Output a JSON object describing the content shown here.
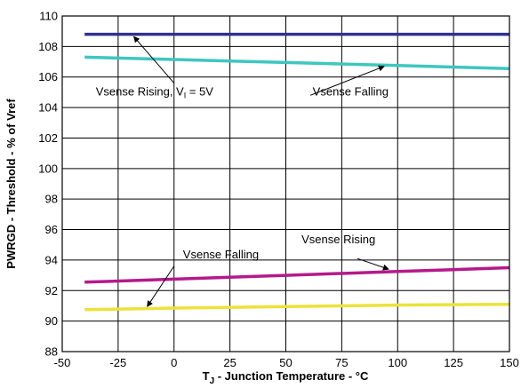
{
  "chart_data": {
    "type": "line",
    "xlabel": {
      "prefix": "T",
      "subscript": "J",
      "rest": " - Junction Temperature - °C"
    },
    "ylabel": "PWRGD - Threshold - % of Vref",
    "xlim": [
      -50,
      150
    ],
    "ylim": [
      88,
      110
    ],
    "xticks": [
      -50,
      -25,
      0,
      25,
      50,
      75,
      100,
      125,
      150
    ],
    "yticks": [
      88,
      90,
      92,
      94,
      96,
      98,
      100,
      102,
      104,
      106,
      108,
      110
    ],
    "grid": true,
    "series": [
      {
        "color": "#2e3192",
        "x": [
          -40,
          150
        ],
        "y": [
          108.8,
          108.8
        ]
      },
      {
        "color": "#3ec6c0",
        "x": [
          -40,
          0,
          50,
          100,
          150
        ],
        "y": [
          107.3,
          107.15,
          106.95,
          106.75,
          106.55
        ]
      },
      {
        "color": "#b5198b",
        "x": [
          -40,
          0,
          50,
          100,
          150
        ],
        "y": [
          92.55,
          92.75,
          93.0,
          93.25,
          93.5
        ]
      },
      {
        "color": "#ece23a",
        "x": [
          -40,
          0,
          50,
          100,
          150
        ],
        "y": [
          90.75,
          90.85,
          90.95,
          91.05,
          91.1
        ]
      }
    ],
    "annotations": [
      {
        "id": "rising-upper",
        "text_main": "Vsense Rising, V",
        "text_sub": "I",
        "text_tail": " = 5V",
        "text_xy": [
          -35,
          104.8
        ],
        "arrow_from": [
          0,
          105.6
        ],
        "arrow_to": [
          -18,
          108.65
        ]
      },
      {
        "id": "falling-upper",
        "text": "Vsense Falling",
        "text_xy": [
          62,
          104.8
        ],
        "arrow_from": [
          61,
          104.8
        ],
        "arrow_to": [
          94,
          106.7
        ]
      },
      {
        "id": "falling-lower",
        "text": "Vsense Falling",
        "text_xy": [
          4,
          94.1
        ],
        "arrow_from": [
          0,
          93.6
        ],
        "arrow_to": [
          -12,
          90.95
        ]
      },
      {
        "id": "rising-lower",
        "text": "Vsense Rising",
        "text_xy": [
          57,
          95.1
        ],
        "arrow_from": [
          82,
          94.1
        ],
        "arrow_to": [
          96,
          93.4
        ]
      }
    ]
  }
}
